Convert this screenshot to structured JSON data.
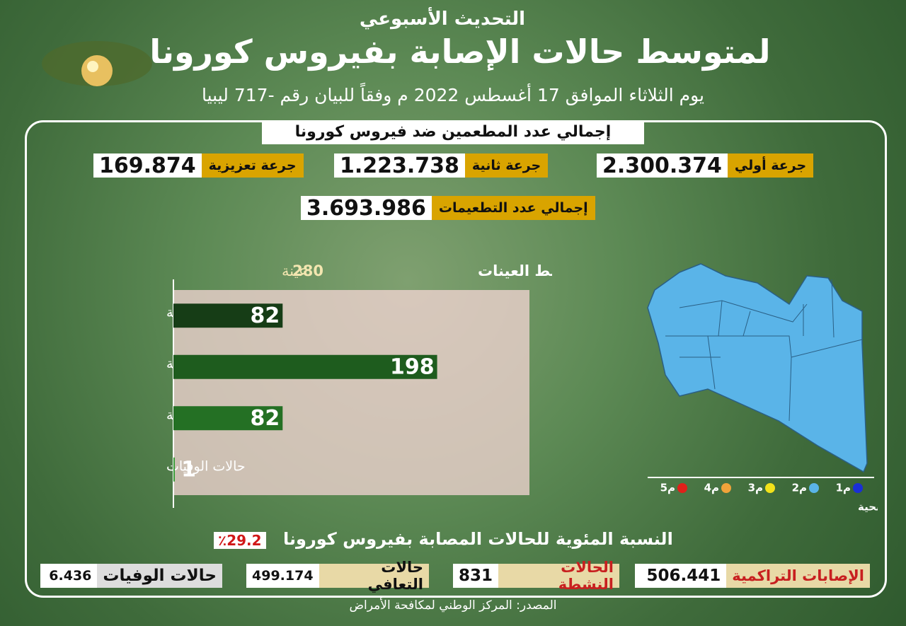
{
  "header": {
    "kicker": "التحديث الأسبوعي",
    "title": "لمتوسط حالات الإصابة بفيروس كورونا",
    "date_line": "يوم الثلاثاء الموافق 17 أغسطس 2022 م وفقاً للبيان رقم -717 ليبيا"
  },
  "vaccination": {
    "title": "إجمالي عدد المطعمين ضد فيروس كورونا",
    "doses": [
      {
        "label": "جرعة أولي",
        "value": "2.300.374"
      },
      {
        "label": "جرعة ثانية",
        "value": "1.223.738"
      },
      {
        "label": "جرعة تعزيزية",
        "value": "169.874"
      }
    ],
    "total": {
      "label": "إجمالي عدد التطعيمات",
      "value": "3.693.986"
    }
  },
  "chart_data": {
    "type": "bar",
    "orientation": "horizontal",
    "title": "متوسط العينات",
    "samples_value": "280",
    "samples_unit": "عينة",
    "categories": [
      "الحالات الموجبة",
      "الحالات السالبة",
      "الحالات المتعافية",
      "حالات الوفيات"
    ],
    "values": [
      82,
      198,
      82,
      1
    ],
    "colors": [
      "#163d16",
      "#1e5c1e",
      "#247024",
      "#2f9a2f"
    ]
  },
  "map_legend": {
    "title": "المستويات الوبائية للمناطق الصحية",
    "levels": [
      {
        "label": "م1",
        "color": "#1a2fd6"
      },
      {
        "label": "م2",
        "color": "#5ab4e8"
      },
      {
        "label": "م3",
        "color": "#f2e21a"
      },
      {
        "label": "م4",
        "color": "#f0a33a"
      },
      {
        "label": "م5",
        "color": "#e0201a"
      }
    ]
  },
  "percentage": {
    "label": "النسبة المئوية للحالات المصابة بفيروس كورونا",
    "value": "٪29.2"
  },
  "stats": [
    {
      "label": "الإصابات التراكمية",
      "value": "506.441"
    },
    {
      "label": "الحالات النشطة",
      "value": "831"
    },
    {
      "label": "حالات التعافي",
      "value": "499.174"
    },
    {
      "label": "حالات الوفيات",
      "value": "6.436"
    }
  ],
  "footer": {
    "source": "المصدر: المركز الوطني لمكافحة الأمراض"
  }
}
